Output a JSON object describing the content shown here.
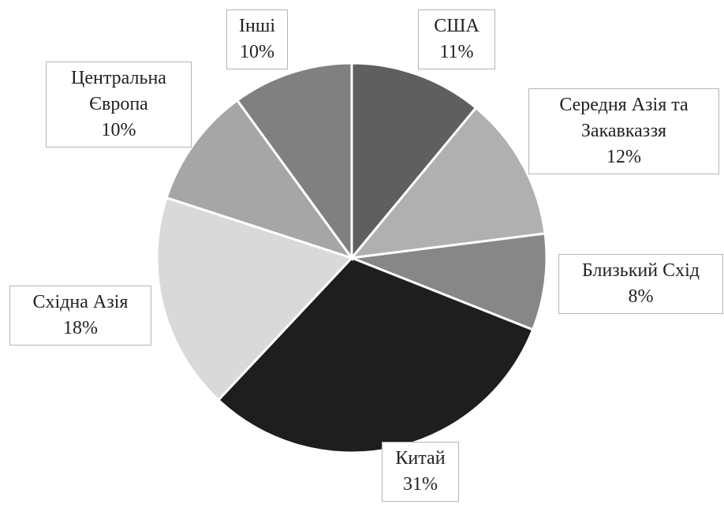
{
  "chart_data": {
    "type": "pie",
    "categories": [
      "США",
      "Середня Азія та Закавказзя",
      "Близький Схід",
      "Китай",
      "Східна Азія",
      "Центральна Європа",
      "Інші"
    ],
    "values": [
      11,
      12,
      8,
      31,
      18,
      10,
      10
    ],
    "value_labels": [
      "11%",
      "12%",
      "8%",
      "31%",
      "18%",
      "10%",
      "10%"
    ],
    "colors": [
      "#5f5f5f",
      "#b0b0b0",
      "#878787",
      "#1e1e1e",
      "#d9d9d9",
      "#a6a6a6",
      "#808080"
    ]
  }
}
